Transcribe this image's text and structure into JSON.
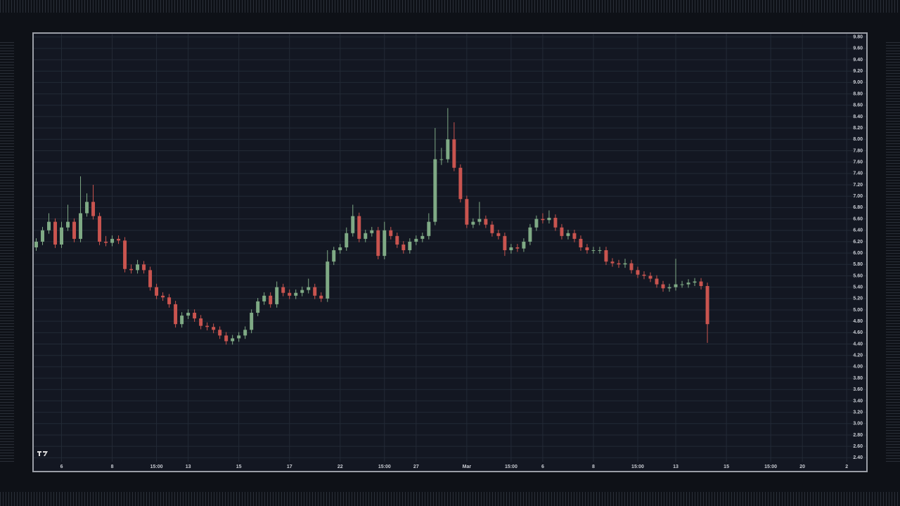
{
  "chart_data": {
    "type": "candlestick",
    "open": [
      6.1,
      6.2,
      6.4,
      6.55,
      6.15,
      6.45,
      6.55,
      6.25,
      6.7,
      6.9,
      6.65,
      6.2,
      6.18,
      6.25,
      6.22,
      5.72,
      5.7,
      5.8,
      5.7,
      5.4,
      5.25,
      5.22,
      5.1,
      4.75,
      4.9,
      4.95,
      4.85,
      4.72,
      4.7,
      4.65,
      4.55,
      4.45,
      4.5,
      4.55,
      4.65,
      4.95,
      5.15,
      5.25,
      5.1,
      5.4,
      5.3,
      5.25,
      5.3,
      5.35,
      5.4,
      5.25,
      5.2,
      5.85,
      6.05,
      6.1,
      6.35,
      6.65,
      6.25,
      6.35,
      6.4,
      5.95,
      6.4,
      6.3,
      6.15,
      6.05,
      6.2,
      6.25,
      6.3,
      6.55,
      7.65,
      7.65,
      8.0,
      7.5,
      6.95,
      6.5,
      6.55,
      6.6,
      6.5,
      6.35,
      6.3,
      6.05,
      6.1,
      6.08,
      6.2,
      6.45,
      6.6,
      6.58,
      6.62,
      6.45,
      6.3,
      6.35,
      6.25,
      6.1,
      6.05,
      6.05,
      6.05,
      5.85,
      5.82,
      5.8,
      5.82,
      5.7,
      5.62,
      5.6,
      5.55,
      5.45,
      5.38,
      5.4,
      5.45,
      5.45,
      5.48,
      5.5,
      5.42
    ],
    "high": [
      6.26,
      6.46,
      6.7,
      6.61,
      6.55,
      6.85,
      6.61,
      7.35,
      7.05,
      7.2,
      6.71,
      6.3,
      6.31,
      6.31,
      6.28,
      5.8,
      5.88,
      5.86,
      5.76,
      5.46,
      5.31,
      5.28,
      5.16,
      4.96,
      5.01,
      5.01,
      4.91,
      4.78,
      4.76,
      4.71,
      4.61,
      4.56,
      4.61,
      4.71,
      5.01,
      5.21,
      5.31,
      5.31,
      5.5,
      5.46,
      5.36,
      5.36,
      5.41,
      5.55,
      5.46,
      5.31,
      6.05,
      6.11,
      6.16,
      6.45,
      6.85,
      6.71,
      6.41,
      6.46,
      6.46,
      6.55,
      6.46,
      6.36,
      6.21,
      6.26,
      6.31,
      6.36,
      6.7,
      8.2,
      7.85,
      8.55,
      8.3,
      7.56,
      7.01,
      6.61,
      6.9,
      6.66,
      6.56,
      6.41,
      6.36,
      6.16,
      6.16,
      6.26,
      6.51,
      6.66,
      6.7,
      6.75,
      6.68,
      6.51,
      6.41,
      6.41,
      6.31,
      6.16,
      6.11,
      6.11,
      6.11,
      5.91,
      5.88,
      5.9,
      5.88,
      5.76,
      5.68,
      5.66,
      5.61,
      5.51,
      5.46,
      5.9,
      5.51,
      5.54,
      5.56,
      5.56,
      5.48
    ],
    "low": [
      6.04,
      6.14,
      6.34,
      6.09,
      6.09,
      6.39,
      6.19,
      6.19,
      6.64,
      6.59,
      6.14,
      6.12,
      6.12,
      6.16,
      5.66,
      5.64,
      5.64,
      5.64,
      5.34,
      5.19,
      5.16,
      5.04,
      4.69,
      4.69,
      4.84,
      4.79,
      4.66,
      4.64,
      4.59,
      4.49,
      4.39,
      4.39,
      4.44,
      4.49,
      4.59,
      4.89,
      5.09,
      5.04,
      5.04,
      5.24,
      5.19,
      5.19,
      5.24,
      5.29,
      5.19,
      5.14,
      5.14,
      5.79,
      5.99,
      6.04,
      6.29,
      6.19,
      6.19,
      6.29,
      5.89,
      5.89,
      6.24,
      6.09,
      5.99,
      5.99,
      6.14,
      6.19,
      6.24,
      6.49,
      7.55,
      7.59,
      7.44,
      6.89,
      6.44,
      6.44,
      6.49,
      6.44,
      6.29,
      6.24,
      5.95,
      5.99,
      6.02,
      6.02,
      6.14,
      6.39,
      6.52,
      6.52,
      6.39,
      6.24,
      6.24,
      6.19,
      6.04,
      5.99,
      5.99,
      5.99,
      5.79,
      5.76,
      5.74,
      5.74,
      5.64,
      5.56,
      5.54,
      5.49,
      5.39,
      5.32,
      5.32,
      5.34,
      5.39,
      5.39,
      5.42,
      5.36,
      4.42
    ],
    "close": [
      6.2,
      6.4,
      6.55,
      6.15,
      6.45,
      6.55,
      6.25,
      6.7,
      6.9,
      6.65,
      6.2,
      6.18,
      6.25,
      6.22,
      5.72,
      5.7,
      5.8,
      5.7,
      5.4,
      5.25,
      5.22,
      5.1,
      4.75,
      4.9,
      4.95,
      4.85,
      4.72,
      4.7,
      4.65,
      4.55,
      4.45,
      4.5,
      4.55,
      4.65,
      4.95,
      5.15,
      5.25,
      5.1,
      5.4,
      5.3,
      5.25,
      5.3,
      5.35,
      5.4,
      5.25,
      5.2,
      5.85,
      6.05,
      6.1,
      6.35,
      6.65,
      6.25,
      6.35,
      6.4,
      5.95,
      6.4,
      6.3,
      6.15,
      6.05,
      6.2,
      6.25,
      6.3,
      6.55,
      7.65,
      7.65,
      8.0,
      7.5,
      6.95,
      6.5,
      6.55,
      6.6,
      6.5,
      6.35,
      6.3,
      6.05,
      6.1,
      6.08,
      6.2,
      6.45,
      6.6,
      6.58,
      6.62,
      6.45,
      6.3,
      6.35,
      6.25,
      6.1,
      6.05,
      6.05,
      6.05,
      5.85,
      5.82,
      5.8,
      5.82,
      5.7,
      5.62,
      5.6,
      5.55,
      5.45,
      5.38,
      5.4,
      5.45,
      5.45,
      5.48,
      5.5,
      5.42,
      4.75
    ],
    "up_color": "#7faa85",
    "down_color": "#c9544f",
    "grid": true,
    "ylim": [
      2.33,
      9.87
    ],
    "yticks": [
      {
        "value": 2.4,
        "label": "2.40"
      },
      {
        "value": 2.6,
        "label": "2.60"
      },
      {
        "value": 2.8,
        "label": "2.80"
      },
      {
        "value": 3.0,
        "label": "3.00"
      },
      {
        "value": 3.2,
        "label": "3.20"
      },
      {
        "value": 3.4,
        "label": "3.40"
      },
      {
        "value": 3.6,
        "label": "3.60"
      },
      {
        "value": 3.8,
        "label": "3.80"
      },
      {
        "value": 4.0,
        "label": "4.00"
      },
      {
        "value": 4.2,
        "label": "4.20"
      },
      {
        "value": 4.4,
        "label": "4.40"
      },
      {
        "value": 4.6,
        "label": "4.60"
      },
      {
        "value": 4.8,
        "label": "4.80"
      },
      {
        "value": 5.0,
        "label": "5.00"
      },
      {
        "value": 5.2,
        "label": "5.20"
      },
      {
        "value": 5.4,
        "label": "5.40"
      },
      {
        "value": 5.6,
        "label": "5.60"
      },
      {
        "value": 5.8,
        "label": "5.80"
      },
      {
        "value": 6.0,
        "label": "6.00"
      },
      {
        "value": 6.2,
        "label": "6.20"
      },
      {
        "value": 6.4,
        "label": "6.40"
      },
      {
        "value": 6.6,
        "label": "6.60"
      },
      {
        "value": 6.8,
        "label": "6.80"
      },
      {
        "value": 7.0,
        "label": "7.00"
      },
      {
        "value": 7.2,
        "label": "7.20"
      },
      {
        "value": 7.4,
        "label": "7.40"
      },
      {
        "value": 7.6,
        "label": "7.60"
      },
      {
        "value": 7.8,
        "label": "7.80"
      },
      {
        "value": 8.0,
        "label": "8.00"
      },
      {
        "value": 8.2,
        "label": "8.20"
      },
      {
        "value": 8.4,
        "label": "8.40"
      },
      {
        "value": 8.6,
        "label": "8.60"
      },
      {
        "value": 8.8,
        "label": "8.80"
      },
      {
        "value": 9.0,
        "label": "9.00"
      },
      {
        "value": 9.2,
        "label": "9.20"
      },
      {
        "value": 9.4,
        "label": "9.40"
      },
      {
        "value": 9.6,
        "label": "9.60"
      },
      {
        "value": 9.8,
        "label": "9.80"
      }
    ],
    "xlim": [
      -0.5,
      131.2
    ],
    "xticks": [
      {
        "value": 4,
        "label": "6"
      },
      {
        "value": 12,
        "label": "8"
      },
      {
        "value": 19,
        "label": "15:00"
      },
      {
        "value": 24,
        "label": "13"
      },
      {
        "value": 32,
        "label": "15"
      },
      {
        "value": 40,
        "label": "17"
      },
      {
        "value": 48,
        "label": "22"
      },
      {
        "value": 55,
        "label": "15:00"
      },
      {
        "value": 60,
        "label": "27"
      },
      {
        "value": 68,
        "label": "Mar"
      },
      {
        "value": 75,
        "label": "15:00"
      },
      {
        "value": 80,
        "label": "6"
      },
      {
        "value": 88,
        "label": "8"
      },
      {
        "value": 95,
        "label": "15:00"
      },
      {
        "value": 101,
        "label": "13"
      },
      {
        "value": 109,
        "label": "15"
      },
      {
        "value": 116,
        "label": "15:00"
      },
      {
        "value": 121,
        "label": "20"
      },
      {
        "value": 128,
        "label": "2"
      }
    ]
  }
}
